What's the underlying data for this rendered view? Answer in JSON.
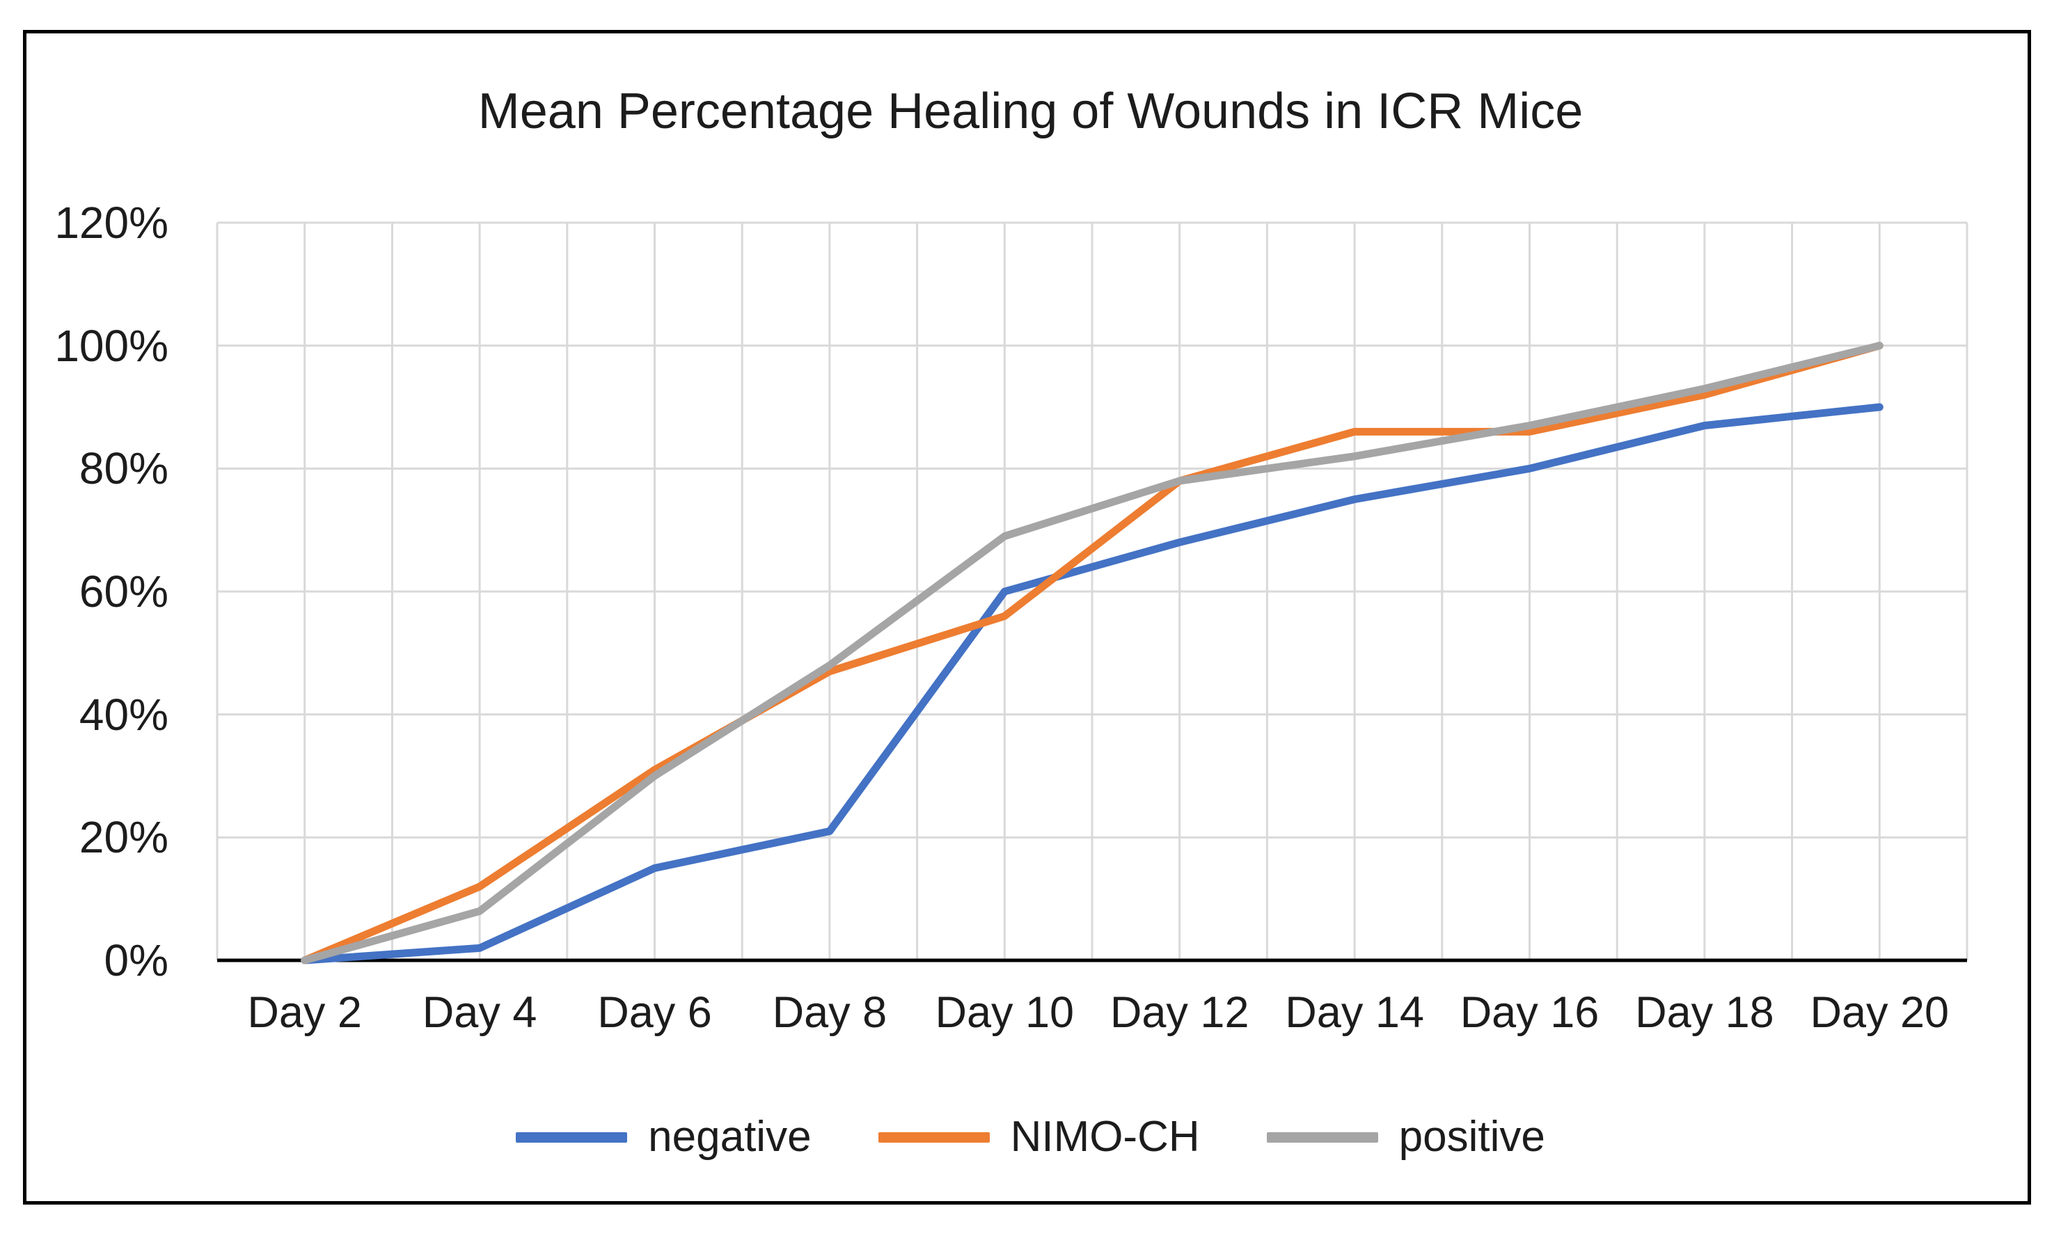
{
  "figure": {
    "background": "#ffffff",
    "border_color": "#000000",
    "text_color": "#1c1c1c"
  },
  "chart_data": {
    "type": "line",
    "title": "Mean Percentage Healing of Wounds in ICR Mice",
    "categories": [
      "Day 2",
      "Day 4",
      "Day 6",
      "Day 8",
      "Day 10",
      "Day 12",
      "Day 14",
      "Day 16",
      "Day 18",
      "Day 20"
    ],
    "series": [
      {
        "name": "negative",
        "color": "#4472C4",
        "values": [
          0,
          2,
          15,
          21,
          60,
          68,
          75,
          80,
          87,
          90
        ]
      },
      {
        "name": "NIMO-CH",
        "color": "#ED7D31",
        "values": [
          0,
          12,
          31,
          47,
          56,
          78,
          86,
          86,
          92,
          100
        ]
      },
      {
        "name": "positive",
        "color": "#A5A5A5",
        "values": [
          0,
          8,
          30,
          48,
          69,
          78,
          82,
          87,
          93,
          100
        ]
      }
    ],
    "unit": "%",
    "y_axis": {
      "min": 0,
      "max": 120,
      "step": 20,
      "tick_labels": [
        "0%",
        "20%",
        "40%",
        "60%",
        "80%",
        "100%",
        "120%"
      ]
    },
    "x_axis": {
      "tick_labels": [
        "Day 2",
        "Day 4",
        "Day 6",
        "Day 8",
        "Day 10",
        "Day 12",
        "Day 14",
        "Day 16",
        "Day 18",
        "Day 20"
      ]
    },
    "legend": {
      "position": "bottom",
      "entries": [
        "negative",
        "NIMO-CH",
        "positive"
      ]
    },
    "grid": {
      "show": true,
      "color": "#D9D9D9"
    },
    "axis_line_color": "#000000",
    "line_width": 11
  }
}
